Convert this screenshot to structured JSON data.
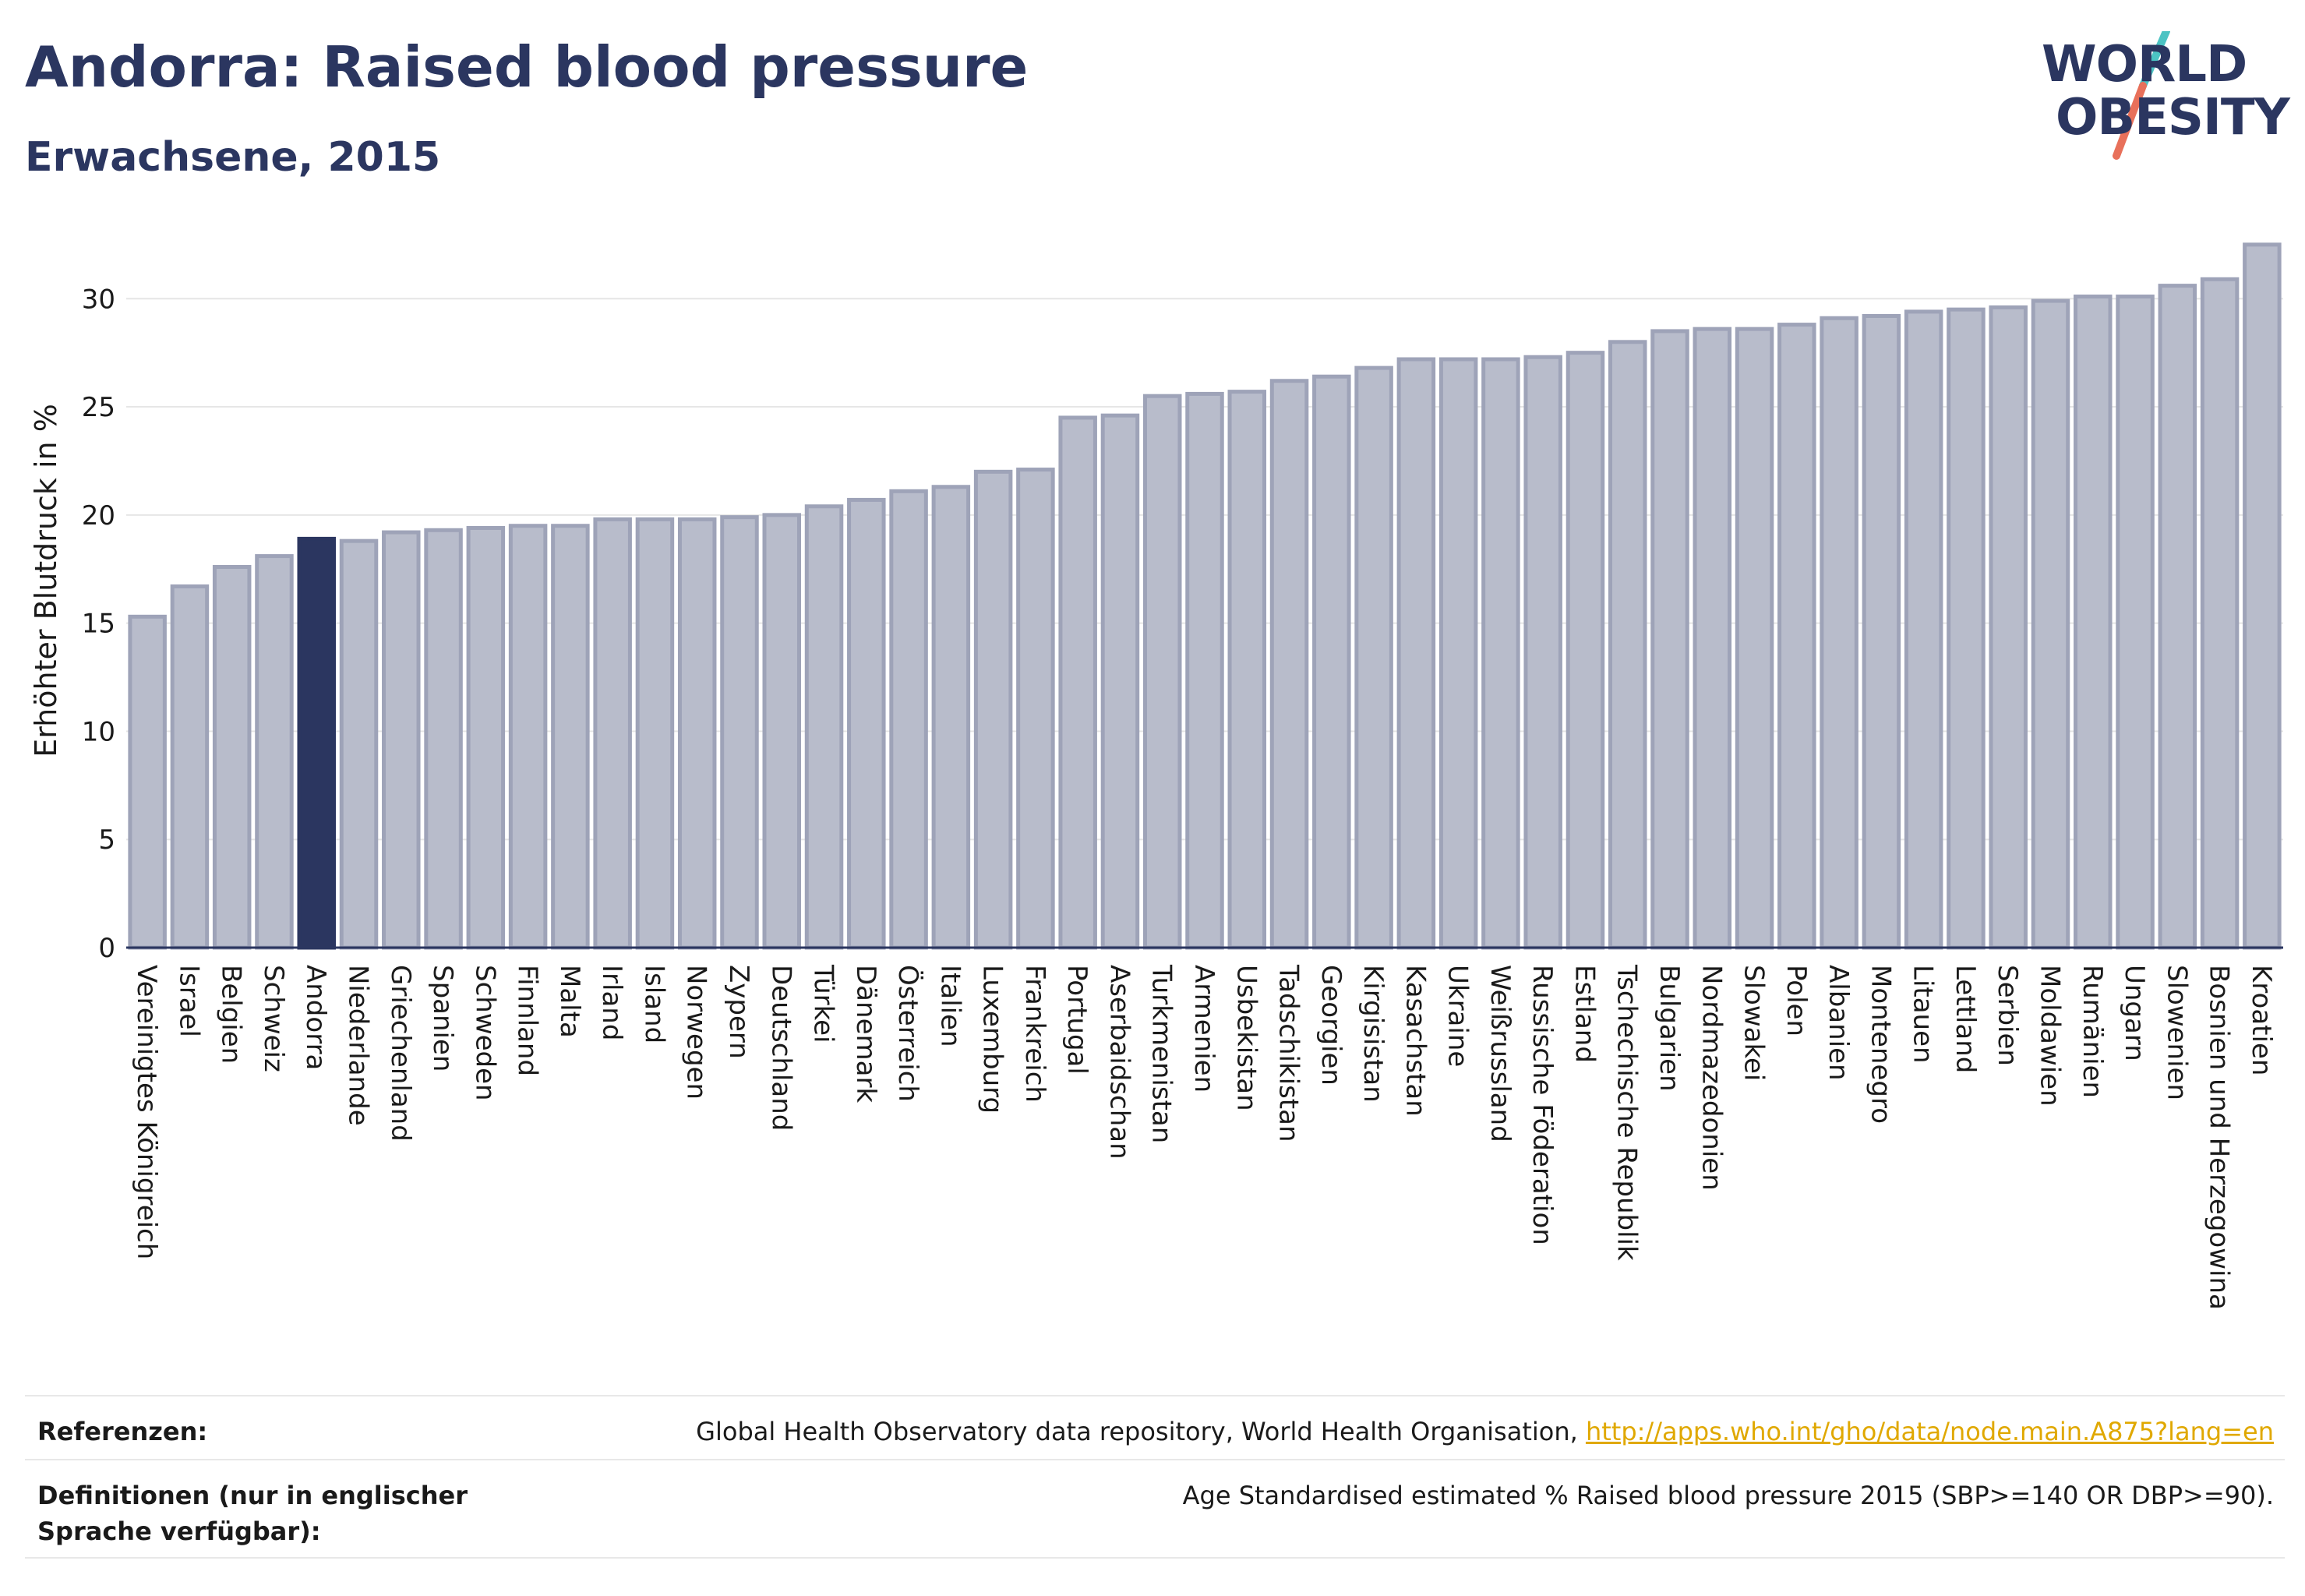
{
  "header": {
    "title": "Andorra: Raised blood pressure",
    "subtitle": "Erwachsene, 2015"
  },
  "logo": {
    "line1": "WORLD",
    "line2": "OBESITY",
    "slash_colors": [
      "#4cc3c3",
      "#e8705a"
    ]
  },
  "colors": {
    "bar": "#b8bccb",
    "bar_stroke": "#9ea3b8",
    "highlight": "#2b3660",
    "axis_text": "#1a1a1a",
    "grid": "#e6e6e6"
  },
  "chart_data": {
    "type": "bar",
    "title": "Andorra: Raised blood pressure",
    "subtitle": "Erwachsene, 2015",
    "ylabel": "Erhöhter Blutdruck in %",
    "xlabel": "",
    "ylim": [
      0,
      33
    ],
    "yticks": [
      0,
      5,
      10,
      15,
      20,
      25,
      30
    ],
    "grid": true,
    "highlight": "Andorra",
    "categories": [
      "Vereinigtes Königreich",
      "Israel",
      "Belgien",
      "Schweiz",
      "Andorra",
      "Niederlande",
      "Griechenland",
      "Spanien",
      "Schweden",
      "Finnland",
      "Malta",
      "Irland",
      "Island",
      "Norwegen",
      "Zypern",
      "Deutschland",
      "Türkei",
      "Dänemark",
      "Österreich",
      "Italien",
      "Luxemburg",
      "Frankreich",
      "Portugal",
      "Aserbaidschan",
      "Turkmenistan",
      "Armenien",
      "Usbekistan",
      "Tadschikistan",
      "Georgien",
      "Kirgisistan",
      "Kasachstan",
      "Ukraine",
      "Weißrussland",
      "Russische Föderation",
      "Estland",
      "Tschechische Republik",
      "Bulgarien",
      "Nordmazedonien",
      "Slowakei",
      "Polen",
      "Albanien",
      "Montenegro",
      "Litauen",
      "Lettland",
      "Serbien",
      "Moldawien",
      "Rumänien",
      "Ungarn",
      "Slowenien",
      "Bosnien und Herzegowina",
      "Kroatien"
    ],
    "values": [
      15.3,
      16.7,
      17.6,
      18.1,
      18.9,
      18.8,
      19.2,
      19.3,
      19.4,
      19.5,
      19.5,
      19.8,
      19.8,
      19.8,
      19.9,
      20.0,
      20.4,
      20.7,
      21.1,
      21.3,
      22.0,
      22.1,
      24.5,
      24.6,
      25.5,
      25.6,
      25.7,
      26.2,
      26.4,
      26.8,
      27.2,
      27.2,
      27.2,
      27.3,
      27.5,
      28.0,
      28.5,
      28.6,
      28.6,
      28.8,
      29.1,
      29.2,
      29.4,
      29.5,
      29.6,
      29.9,
      30.1,
      30.1,
      30.6,
      30.9,
      32.5
    ]
  },
  "footer": {
    "references_label": "Referenzen:",
    "references_text": "Global Health Observatory data repository, World Health Organisation, ",
    "references_link": "http://apps.who.int/gho/data/node.main.A875?lang=en",
    "definitions_label": "Definitionen (nur in englischer Sprache verfügbar):",
    "definitions_text": "Age Standardised estimated % Raised blood pressure 2015 (SBP>=140 OR DBP>=90)."
  }
}
